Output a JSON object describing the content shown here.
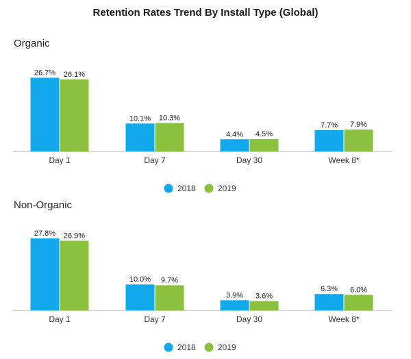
{
  "title": "Retention Rates Trend By Install Type (Global)",
  "colors": {
    "s2018": "#12aaeb",
    "s2019": "#8cc13f",
    "axis": "#cccccc"
  },
  "chart_data": [
    {
      "type": "bar",
      "title": "Organic",
      "categories": [
        "Day 1",
        "Day 7",
        "Day 30",
        "Week 8*"
      ],
      "series": [
        {
          "name": "2018",
          "values": [
            26.7,
            10.1,
            4.4,
            7.7
          ],
          "labels": [
            "26.7%",
            "10.1%",
            "4.4%",
            "7.7%"
          ]
        },
        {
          "name": "2019",
          "values": [
            26.1,
            10.3,
            4.5,
            7.9
          ],
          "labels": [
            "26.1%",
            "10.3%",
            "4.5%",
            "7.9%"
          ]
        }
      ],
      "legend_position": "bottom-center",
      "grid": false
    },
    {
      "type": "bar",
      "title": "Non-Organic",
      "categories": [
        "Day 1",
        "Day 7",
        "Day 30",
        "Week 8*"
      ],
      "series": [
        {
          "name": "2018",
          "values": [
            27.8,
            10.0,
            3.9,
            6.3
          ],
          "labels": [
            "27.8%",
            "10.0%",
            "3.9%",
            "6.3%"
          ]
        },
        {
          "name": "2019",
          "values": [
            26.9,
            9.7,
            3.6,
            6.0
          ],
          "labels": [
            "26.9%",
            "9.7%",
            "3.6%",
            "6.0%"
          ]
        }
      ],
      "legend_position": "bottom-center",
      "grid": false
    }
  ]
}
